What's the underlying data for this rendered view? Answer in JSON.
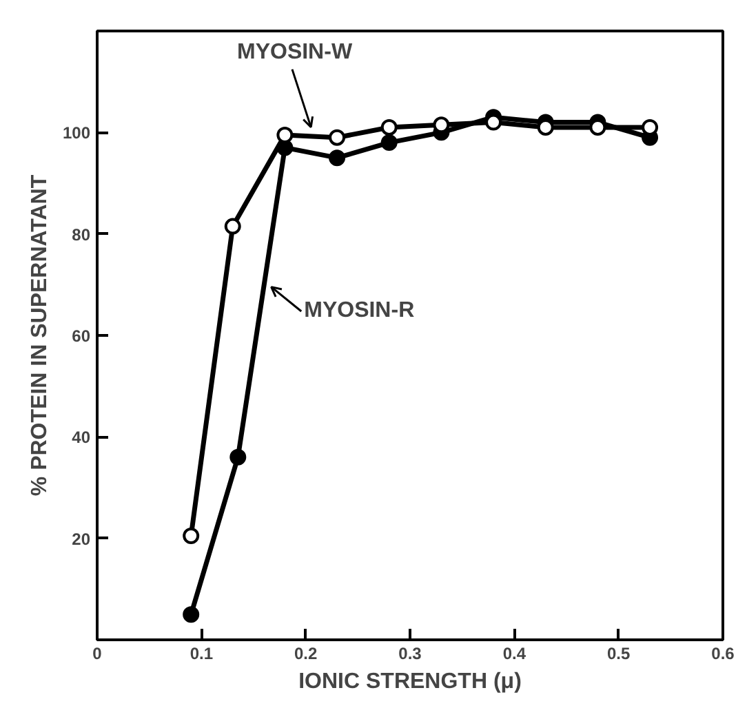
{
  "chart_data": {
    "type": "line",
    "xlabel": "IONIC STRENGTH (μ)",
    "ylabel": "% PROTEIN IN SUPERNATANT",
    "xlim": [
      0,
      0.6
    ],
    "ylim": [
      0,
      120
    ],
    "xticks": [
      0,
      0.1,
      0.2,
      0.3,
      0.4,
      0.5,
      0.6
    ],
    "yticks": [
      20,
      40,
      60,
      80,
      100
    ],
    "grid": false,
    "line_style": "solid",
    "series": [
      {
        "name": "MYOSIN-W",
        "color": "#000000",
        "marker": "circle_open",
        "x": [
          0.09,
          0.13,
          0.18,
          0.23,
          0.28,
          0.33,
          0.38,
          0.43,
          0.48,
          0.53
        ],
        "values": [
          20.5,
          81.5,
          99.5,
          99,
          101,
          101.5,
          102,
          101,
          101,
          101
        ]
      },
      {
        "name": "MYOSIN-R",
        "color": "#000000",
        "marker": "circle",
        "x": [
          0.09,
          0.135,
          0.18,
          0.23,
          0.28,
          0.33,
          0.38,
          0.43,
          0.48,
          0.53
        ],
        "values": [
          5,
          36,
          97,
          95,
          98,
          100,
          103,
          102,
          102,
          99
        ]
      }
    ]
  }
}
